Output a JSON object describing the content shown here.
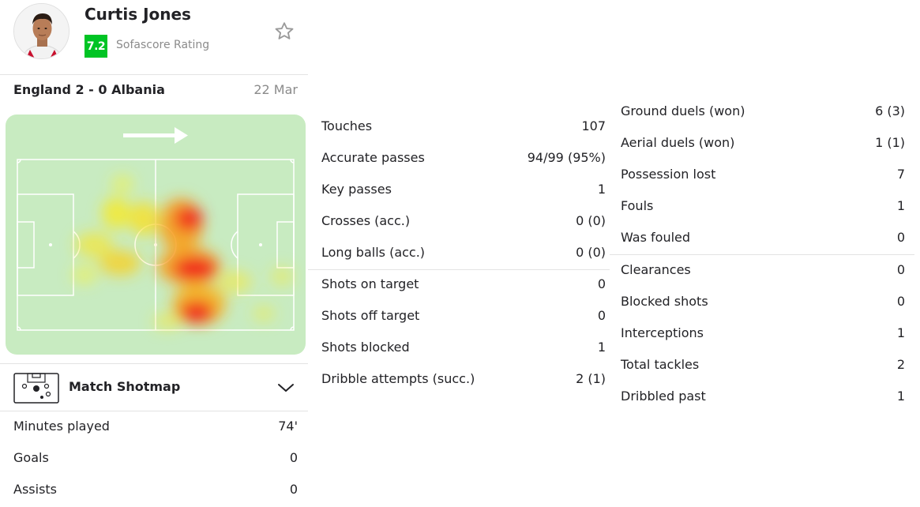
{
  "player": {
    "name": "Curtis Jones",
    "rating": "7.2",
    "rating_label": "Sofascore Rating",
    "rating_color": "#00c424"
  },
  "icons": {
    "favorite": "star-outline-icon",
    "shotmap": "pitch-shotmap-icon",
    "expand": "chevron-down-icon",
    "direction": "arrow-right-icon"
  },
  "match": {
    "title": "England 2 - 0 Albania",
    "date": "22 Mar"
  },
  "shotmap": {
    "label": "Match Shotmap"
  },
  "left_stats": [
    {
      "label": "Minutes played",
      "value": "74'"
    },
    {
      "label": "Goals",
      "value": "0"
    },
    {
      "label": "Assists",
      "value": "0"
    }
  ],
  "mid_stats_1": [
    {
      "label": "Touches",
      "value": "107"
    },
    {
      "label": "Accurate passes",
      "value": "94/99 (95%)"
    },
    {
      "label": "Key passes",
      "value": "1"
    },
    {
      "label": "Crosses (acc.)",
      "value": "0 (0)"
    },
    {
      "label": "Long balls (acc.)",
      "value": "0 (0)"
    }
  ],
  "mid_stats_2": [
    {
      "label": "Shots on target",
      "value": "0"
    },
    {
      "label": "Shots off target",
      "value": "0"
    },
    {
      "label": "Shots blocked",
      "value": "1"
    },
    {
      "label": "Dribble attempts (succ.)",
      "value": "2 (1)"
    }
  ],
  "right_stats_1": [
    {
      "label": "Ground duels (won)",
      "value": "6 (3)"
    },
    {
      "label": "Aerial duels (won)",
      "value": "1 (1)"
    },
    {
      "label": "Possession lost",
      "value": "7"
    },
    {
      "label": "Fouls",
      "value": "1"
    },
    {
      "label": "Was fouled",
      "value": "0"
    }
  ],
  "right_stats_2": [
    {
      "label": "Clearances",
      "value": "0"
    },
    {
      "label": "Blocked shots",
      "value": "0"
    },
    {
      "label": "Interceptions",
      "value": "1"
    },
    {
      "label": "Total tackles",
      "value": "2"
    },
    {
      "label": "Dribbled past",
      "value": "1"
    }
  ]
}
